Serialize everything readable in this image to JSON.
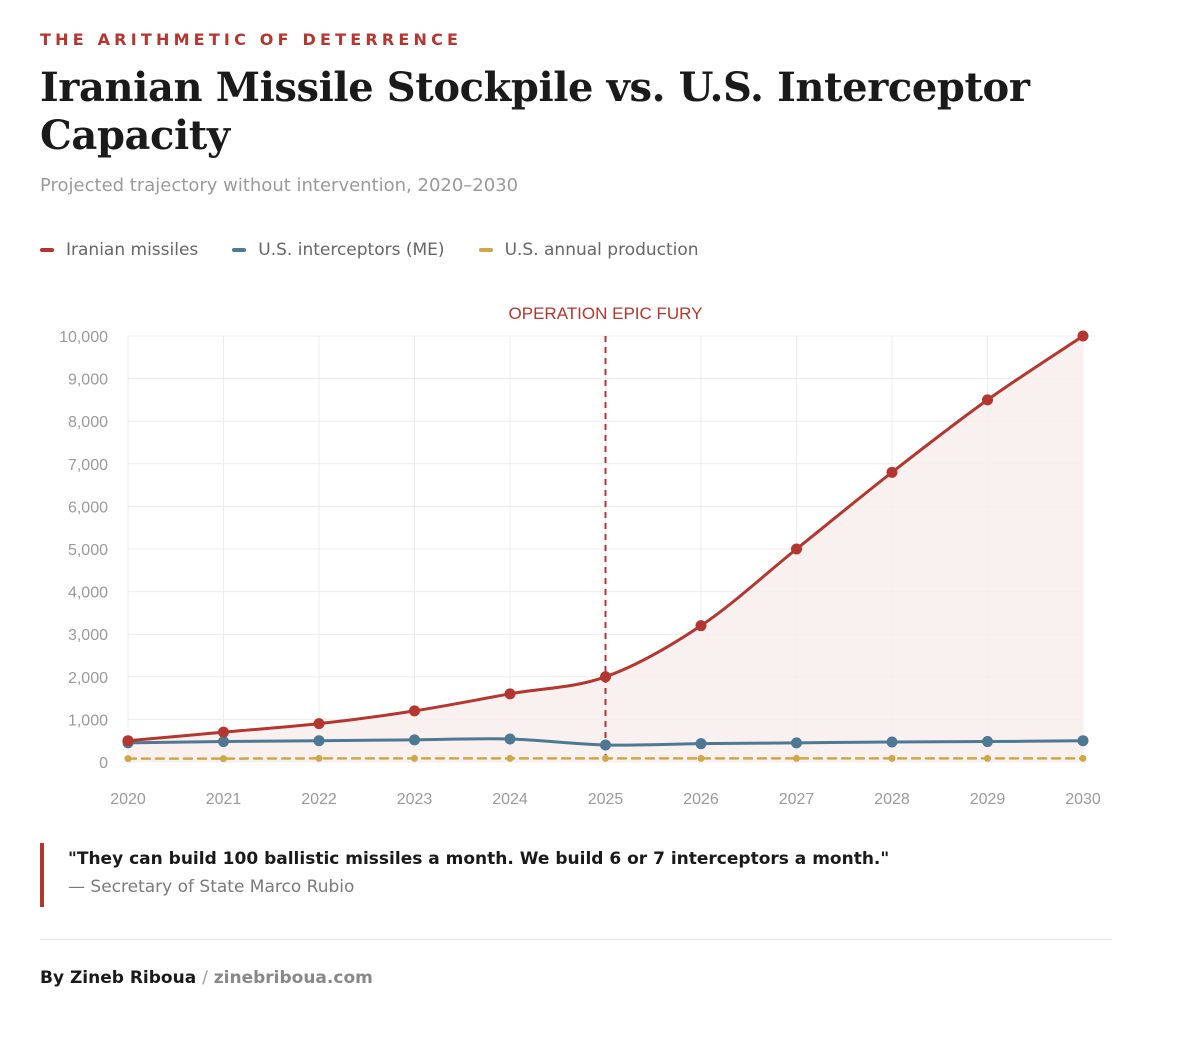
{
  "header": {
    "kicker": "THE ARITHMETIC OF DETERRENCE",
    "title": "Iranian Missile Stockpile vs. U.S. Interceptor Capacity",
    "subtitle": "Projected trajectory without intervention, 2020–2030"
  },
  "colors": {
    "red": "#b5362f",
    "blue": "#4e7894",
    "gold": "#cfa64a",
    "grid": "#ececec",
    "tick": "#9a9a9a",
    "fill": "#f8eeec"
  },
  "chart_data": {
    "type": "line",
    "x": [
      "2020",
      "2021",
      "2022",
      "2023",
      "2024",
      "2025",
      "2026",
      "2027",
      "2028",
      "2029",
      "2030"
    ],
    "series": [
      {
        "name": "Iranian missiles",
        "color": "#b5362f",
        "dashed": false,
        "filled": true,
        "values": [
          500,
          700,
          900,
          1200,
          1600,
          2000,
          3200,
          5000,
          6800,
          8500,
          10000
        ]
      },
      {
        "name": "U.S. interceptors (ME)",
        "color": "#4e7894",
        "dashed": false,
        "filled": false,
        "values": [
          450,
          480,
          500,
          520,
          540,
          400,
          430,
          450,
          470,
          480,
          500
        ]
      },
      {
        "name": "U.S. annual production",
        "color": "#cfa64a",
        "dashed": true,
        "filled": false,
        "values": [
          80,
          80,
          84,
          84,
          84,
          84,
          84,
          84,
          84,
          84,
          84
        ]
      }
    ],
    "ylim": [
      0,
      10000
    ],
    "yticks": [
      0,
      1000,
      2000,
      3000,
      4000,
      5000,
      6000,
      7000,
      8000,
      9000,
      10000
    ],
    "ytick_labels": [
      "0",
      "1,000",
      "2,000",
      "3,000",
      "4,000",
      "5,000",
      "6,000",
      "7,000",
      "8,000",
      "9,000",
      "10,000"
    ],
    "xlabel": "",
    "ylabel": "",
    "grid": true,
    "annotation": {
      "x": "2025",
      "label": "OPERATION EPIC FURY"
    }
  },
  "quote": {
    "text": "\"They can build 100 ballistic missiles a month. We build 6 or 7 interceptors a month.\"",
    "attribution": "— Secretary of State Marco Rubio"
  },
  "footer": {
    "author": "By Zineb Riboua",
    "separator": "/",
    "site": "zinebriboua.com"
  }
}
